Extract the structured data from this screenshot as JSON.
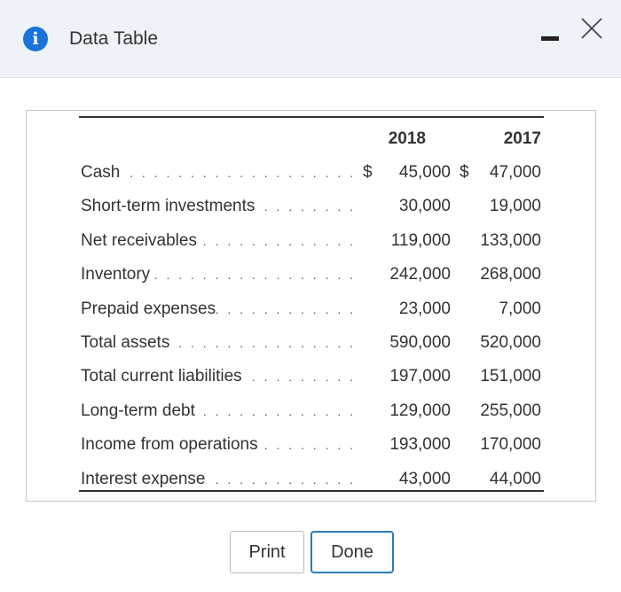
{
  "dialog": {
    "title": "Data Table",
    "info_icon_glyph": "i",
    "icons": {
      "info": "info-icon",
      "minimize": "minimize-icon",
      "close": "close-icon"
    },
    "accent_color": "#1a73d9"
  },
  "table": {
    "columns": [
      "2018",
      "2017"
    ],
    "currency_symbol": "$",
    "dots": ". . . . . . . . . . . . . . . . . . . . . . . . . . . . . . .",
    "rows": [
      {
        "label": "Cash",
        "v2018": "45,000",
        "v2017": "47,000",
        "show_currency": true
      },
      {
        "label": "Short-term investments",
        "v2018": "30,000",
        "v2017": "19,000"
      },
      {
        "label": "Net receivables",
        "v2018": "119,000",
        "v2017": "133,000"
      },
      {
        "label": "Inventory",
        "v2018": "242,000",
        "v2017": "268,000"
      },
      {
        "label": "Prepaid expenses",
        "v2018": "23,000",
        "v2017": "7,000"
      },
      {
        "label": "Total assets",
        "v2018": "590,000",
        "v2017": "520,000"
      },
      {
        "label": "Total current liabilities",
        "v2018": "197,000",
        "v2017": "151,000"
      },
      {
        "label": "Long-term debt",
        "v2018": "129,000",
        "v2017": "255,000"
      },
      {
        "label": "Income from operations",
        "v2018": "193,000",
        "v2017": "170,000"
      },
      {
        "label": "Interest expense",
        "v2018": "43,000",
        "v2017": "44,000"
      }
    ]
  },
  "buttons": {
    "print_label": "Print",
    "done_label": "Done"
  }
}
